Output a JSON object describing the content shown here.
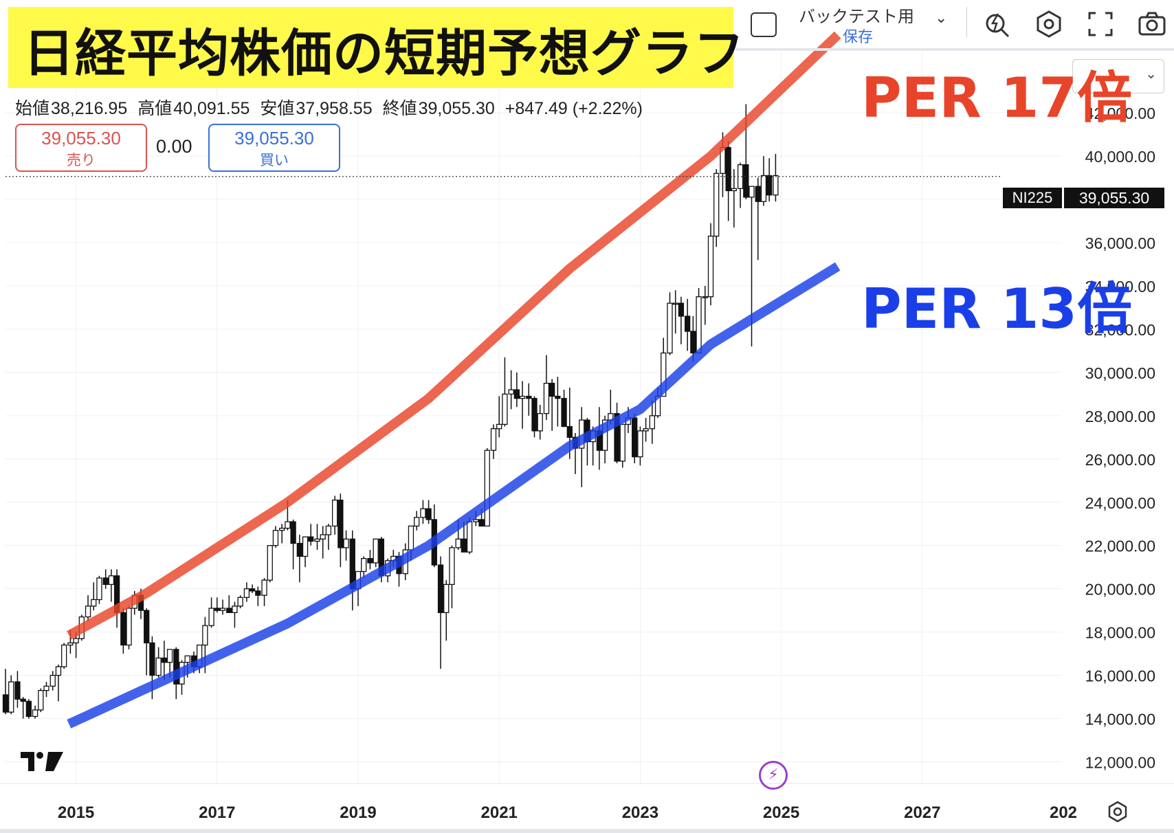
{
  "title": "日経平均株価の短期予想グラフ",
  "ohlc": {
    "open_label": "始値",
    "open": "38,216.95",
    "high_label": "高値",
    "high": "40,091.55",
    "low_label": "安値",
    "low": "37,958.55",
    "close_label": "終値",
    "close": "39,055.30",
    "change": "+847.49 (+2.22%)"
  },
  "trade": {
    "sell_price": "39,055.30",
    "sell_label": "売り",
    "spread": "0.00",
    "buy_price": "39,055.30",
    "buy_label": "買い"
  },
  "toolbar": {
    "backtest_label": "バックテスト用",
    "save_label": "保存"
  },
  "symbol": "NI225",
  "last_price_tag": "39,055.30",
  "annotations": {
    "per17_label": "PER 17倍",
    "per17_color": "#e8442a",
    "per13_label": "PER 13倍",
    "per13_color": "#1a3fe8"
  },
  "chart_data": {
    "type": "candlestick",
    "y_axis_ticks": [
      "12,000.00",
      "14,000.00",
      "16,000.00",
      "18,000.00",
      "20,000.00",
      "22,000.00",
      "24,000.00",
      "26,000.00",
      "28,000.00",
      "30,000.00",
      "32,000.00",
      "34,000.00",
      "36,000.00",
      "38,000.00",
      "40,000.00",
      "42,000.00"
    ],
    "y_range": [
      11000,
      44800
    ],
    "x_axis_ticks": [
      "2015",
      "2017",
      "2019",
      "2021",
      "2023",
      "2025",
      "2027",
      "202"
    ],
    "x_range": [
      2014.0,
      2029.0
    ],
    "last_price": 39055.3,
    "per17_line": [
      [
        2014.9,
        17850
      ],
      [
        2016.0,
        19800
      ],
      [
        2018.0,
        24000
      ],
      [
        2020.0,
        28800
      ],
      [
        2022.0,
        34800
      ],
      [
        2024.0,
        40000
      ],
      [
        2025.8,
        45600
      ]
    ],
    "per13_line": [
      [
        2014.9,
        13750
      ],
      [
        2016.0,
        15400
      ],
      [
        2018.0,
        18400
      ],
      [
        2020.0,
        22000
      ],
      [
        2022.0,
        26600
      ],
      [
        2023.0,
        28300
      ],
      [
        2024.0,
        31300
      ],
      [
        2025.8,
        34900
      ]
    ],
    "candles": [
      [
        2014.0,
        15100,
        16300,
        14200,
        14300
      ],
      [
        2014.08,
        14300,
        16000,
        14200,
        15700
      ],
      [
        2014.17,
        15700,
        16200,
        14500,
        14900
      ],
      [
        2014.25,
        14900,
        15000,
        14000,
        14800
      ],
      [
        2014.33,
        14800,
        14900,
        14000,
        14100
      ],
      [
        2014.42,
        14100,
        14600,
        14000,
        14400
      ],
      [
        2014.5,
        14400,
        15400,
        14300,
        15300
      ],
      [
        2014.58,
        15300,
        15700,
        15000,
        15500
      ],
      [
        2014.67,
        15500,
        16200,
        15300,
        16000
      ],
      [
        2014.75,
        16000,
        16500,
        14800,
        16400
      ],
      [
        2014.83,
        16400,
        17500,
        16300,
        17400
      ],
      [
        2014.92,
        17400,
        18100,
        17000,
        17500
      ],
      [
        2015.0,
        17500,
        18000,
        16800,
        17700
      ],
      [
        2015.08,
        17700,
        18800,
        17600,
        18700
      ],
      [
        2015.17,
        18700,
        19700,
        18500,
        19200
      ],
      [
        2015.25,
        19200,
        20300,
        19000,
        19500
      ],
      [
        2015.33,
        19500,
        20600,
        19300,
        20500
      ],
      [
        2015.42,
        20500,
        20900,
        20000,
        20200
      ],
      [
        2015.5,
        20200,
        20900,
        19400,
        20600
      ],
      [
        2015.58,
        20600,
        20900,
        18200,
        18900
      ],
      [
        2015.67,
        18900,
        19100,
        17000,
        17400
      ],
      [
        2015.75,
        17400,
        19200,
        17200,
        19100
      ],
      [
        2015.83,
        19100,
        19900,
        18800,
        19700
      ],
      [
        2015.92,
        19700,
        20000,
        18600,
        19000
      ],
      [
        2016.0,
        19000,
        19100,
        16000,
        17500
      ],
      [
        2016.08,
        17500,
        17800,
        14900,
        16000
      ],
      [
        2016.17,
        16000,
        17300,
        15900,
        16800
      ],
      [
        2016.25,
        16800,
        17600,
        15800,
        16600
      ],
      [
        2016.33,
        16600,
        17200,
        15900,
        17200
      ],
      [
        2016.42,
        17200,
        17300,
        14900,
        15600
      ],
      [
        2016.5,
        15600,
        16700,
        15100,
        16600
      ],
      [
        2016.58,
        16600,
        16900,
        15900,
        16900
      ],
      [
        2016.67,
        16900,
        17100,
        16100,
        16400
      ],
      [
        2016.75,
        16400,
        17400,
        16100,
        17400
      ],
      [
        2016.83,
        17400,
        18700,
        16100,
        18300
      ],
      [
        2016.92,
        18300,
        19600,
        18200,
        19100
      ],
      [
        2017.0,
        19100,
        19600,
        18900,
        19000
      ],
      [
        2017.08,
        19000,
        19500,
        18800,
        19100
      ],
      [
        2017.17,
        19100,
        19700,
        18900,
        18900
      ],
      [
        2017.25,
        18900,
        19400,
        18200,
        19200
      ],
      [
        2017.33,
        19200,
        19700,
        19100,
        19600
      ],
      [
        2017.42,
        19600,
        20300,
        19400,
        20000
      ],
      [
        2017.5,
        20000,
        20200,
        19800,
        19900
      ],
      [
        2017.58,
        19900,
        20100,
        19200,
        19700
      ],
      [
        2017.67,
        19700,
        20500,
        19200,
        20400
      ],
      [
        2017.75,
        20400,
        22000,
        20300,
        22000
      ],
      [
        2017.83,
        22000,
        22900,
        21900,
        22700
      ],
      [
        2017.92,
        22700,
        23000,
        22100,
        22800
      ],
      [
        2018.0,
        22800,
        24100,
        22700,
        23100
      ],
      [
        2018.08,
        23100,
        23200,
        20900,
        22100
      ],
      [
        2018.17,
        22100,
        22500,
        20300,
        21500
      ],
      [
        2018.25,
        21500,
        22400,
        21000,
        22400
      ],
      [
        2018.33,
        22400,
        23000,
        22000,
        22200
      ],
      [
        2018.42,
        22200,
        23000,
        21800,
        22300
      ],
      [
        2018.5,
        22300,
        22900,
        21400,
        22500
      ],
      [
        2018.58,
        22500,
        23000,
        21800,
        22900
      ],
      [
        2018.67,
        22900,
        24300,
        22500,
        24100
      ],
      [
        2018.75,
        24100,
        24400,
        21000,
        21900
      ],
      [
        2018.83,
        21900,
        22700,
        21300,
        22300
      ],
      [
        2018.92,
        22300,
        22700,
        19000,
        20000
      ],
      [
        2019.0,
        20000,
        20800,
        19200,
        20800
      ],
      [
        2019.08,
        20800,
        21500,
        20500,
        21400
      ],
      [
        2019.17,
        21400,
        21800,
        20900,
        21200
      ],
      [
        2019.25,
        21200,
        22300,
        21000,
        22300
      ],
      [
        2019.33,
        22300,
        22400,
        20300,
        20600
      ],
      [
        2019.42,
        20600,
        21400,
        20300,
        21300
      ],
      [
        2019.5,
        21300,
        21800,
        21000,
        21500
      ],
      [
        2019.58,
        21500,
        21700,
        20100,
        20700
      ],
      [
        2019.67,
        20700,
        22100,
        20400,
        21800
      ],
      [
        2019.75,
        21800,
        22900,
        21300,
        22900
      ],
      [
        2019.83,
        22900,
        23600,
        22700,
        23300
      ],
      [
        2019.92,
        23300,
        24100,
        23000,
        23700
      ],
      [
        2020.0,
        23700,
        24100,
        23000,
        23200
      ],
      [
        2020.08,
        23200,
        23900,
        21000,
        21100
      ],
      [
        2020.17,
        21100,
        21500,
        16300,
        18900
      ],
      [
        2020.25,
        18900,
        20400,
        17600,
        20200
      ],
      [
        2020.33,
        20200,
        22000,
        19100,
        21900
      ],
      [
        2020.42,
        21900,
        23200,
        21800,
        22300
      ],
      [
        2020.5,
        22300,
        23100,
        21700,
        21700
      ],
      [
        2020.58,
        21700,
        23300,
        21600,
        23100
      ],
      [
        2020.67,
        23100,
        23600,
        22900,
        23200
      ],
      [
        2020.75,
        23200,
        23700,
        22900,
        22900
      ],
      [
        2020.83,
        22900,
        26500,
        22900,
        26400
      ],
      [
        2020.92,
        26400,
        27600,
        26000,
        27400
      ],
      [
        2021.0,
        27400,
        28900,
        27000,
        27600
      ],
      [
        2021.08,
        27600,
        30700,
        27500,
        29000
      ],
      [
        2021.17,
        29000,
        30100,
        28300,
        29200
      ],
      [
        2021.25,
        29200,
        30000,
        28400,
        28800
      ],
      [
        2021.33,
        28800,
        29600,
        27400,
        28900
      ],
      [
        2021.42,
        28900,
        29500,
        28000,
        28800
      ],
      [
        2021.5,
        28800,
        28900,
        27000,
        27300
      ],
      [
        2021.58,
        27300,
        28500,
        26900,
        28100
      ],
      [
        2021.67,
        28100,
        30800,
        27800,
        29500
      ],
      [
        2021.75,
        29500,
        29700,
        27300,
        28900
      ],
      [
        2021.83,
        28900,
        29800,
        27500,
        28800
      ],
      [
        2021.92,
        28800,
        29200,
        27500,
        27500
      ],
      [
        2022.0,
        27500,
        29300,
        26000,
        27000
      ],
      [
        2022.08,
        27000,
        27200,
        25300,
        26500
      ],
      [
        2022.17,
        26500,
        28400,
        24700,
        27800
      ],
      [
        2022.25,
        27800,
        27900,
        25700,
        26800
      ],
      [
        2022.33,
        26800,
        27500,
        25700,
        27300
      ],
      [
        2022.42,
        27300,
        28400,
        25500,
        26400
      ],
      [
        2022.5,
        26400,
        28000,
        25800,
        27800
      ],
      [
        2022.58,
        27800,
        29200,
        27600,
        28100
      ],
      [
        2022.67,
        28100,
        28600,
        25800,
        25900
      ],
      [
        2022.75,
        25900,
        27600,
        25600,
        27600
      ],
      [
        2022.83,
        27600,
        28400,
        27200,
        27900
      ],
      [
        2022.92,
        27900,
        28100,
        25800,
        26100
      ],
      [
        2023.0,
        26100,
        27500,
        25700,
        27300
      ],
      [
        2023.08,
        27300,
        27900,
        26800,
        27400
      ],
      [
        2023.17,
        27400,
        28700,
        26700,
        28000
      ],
      [
        2023.25,
        28000,
        29300,
        27900,
        28900
      ],
      [
        2023.33,
        28900,
        31600,
        28900,
        30900
      ],
      [
        2023.42,
        30900,
        33700,
        30800,
        33200
      ],
      [
        2023.5,
        33200,
        33800,
        31800,
        33200
      ],
      [
        2023.58,
        33200,
        33500,
        31300,
        32600
      ],
      [
        2023.67,
        32600,
        33400,
        31000,
        31900
      ],
      [
        2023.75,
        31900,
        32600,
        30500,
        30900
      ],
      [
        2023.83,
        30900,
        33900,
        30900,
        33500
      ],
      [
        2023.92,
        33500,
        34000,
        32200,
        33500
      ],
      [
        2024.0,
        33500,
        36900,
        33100,
        36300
      ],
      [
        2024.08,
        36300,
        39400,
        35800,
        39200
      ],
      [
        2024.17,
        39200,
        41100,
        38100,
        40400
      ],
      [
        2024.25,
        40400,
        40700,
        37000,
        38400
      ],
      [
        2024.33,
        38400,
        39400,
        36700,
        38500
      ],
      [
        2024.42,
        38500,
        39700,
        37600,
        39600
      ],
      [
        2024.5,
        39600,
        42400,
        38000,
        38100
      ],
      [
        2024.58,
        38100,
        38300,
        31200,
        38600
      ],
      [
        2024.67,
        38600,
        39000,
        35200,
        37900
      ],
      [
        2024.75,
        37900,
        40000,
        37700,
        39100
      ],
      [
        2024.83,
        39100,
        39900,
        37900,
        38200
      ],
      [
        2024.92,
        38200,
        40100,
        37900,
        39100
      ]
    ]
  }
}
